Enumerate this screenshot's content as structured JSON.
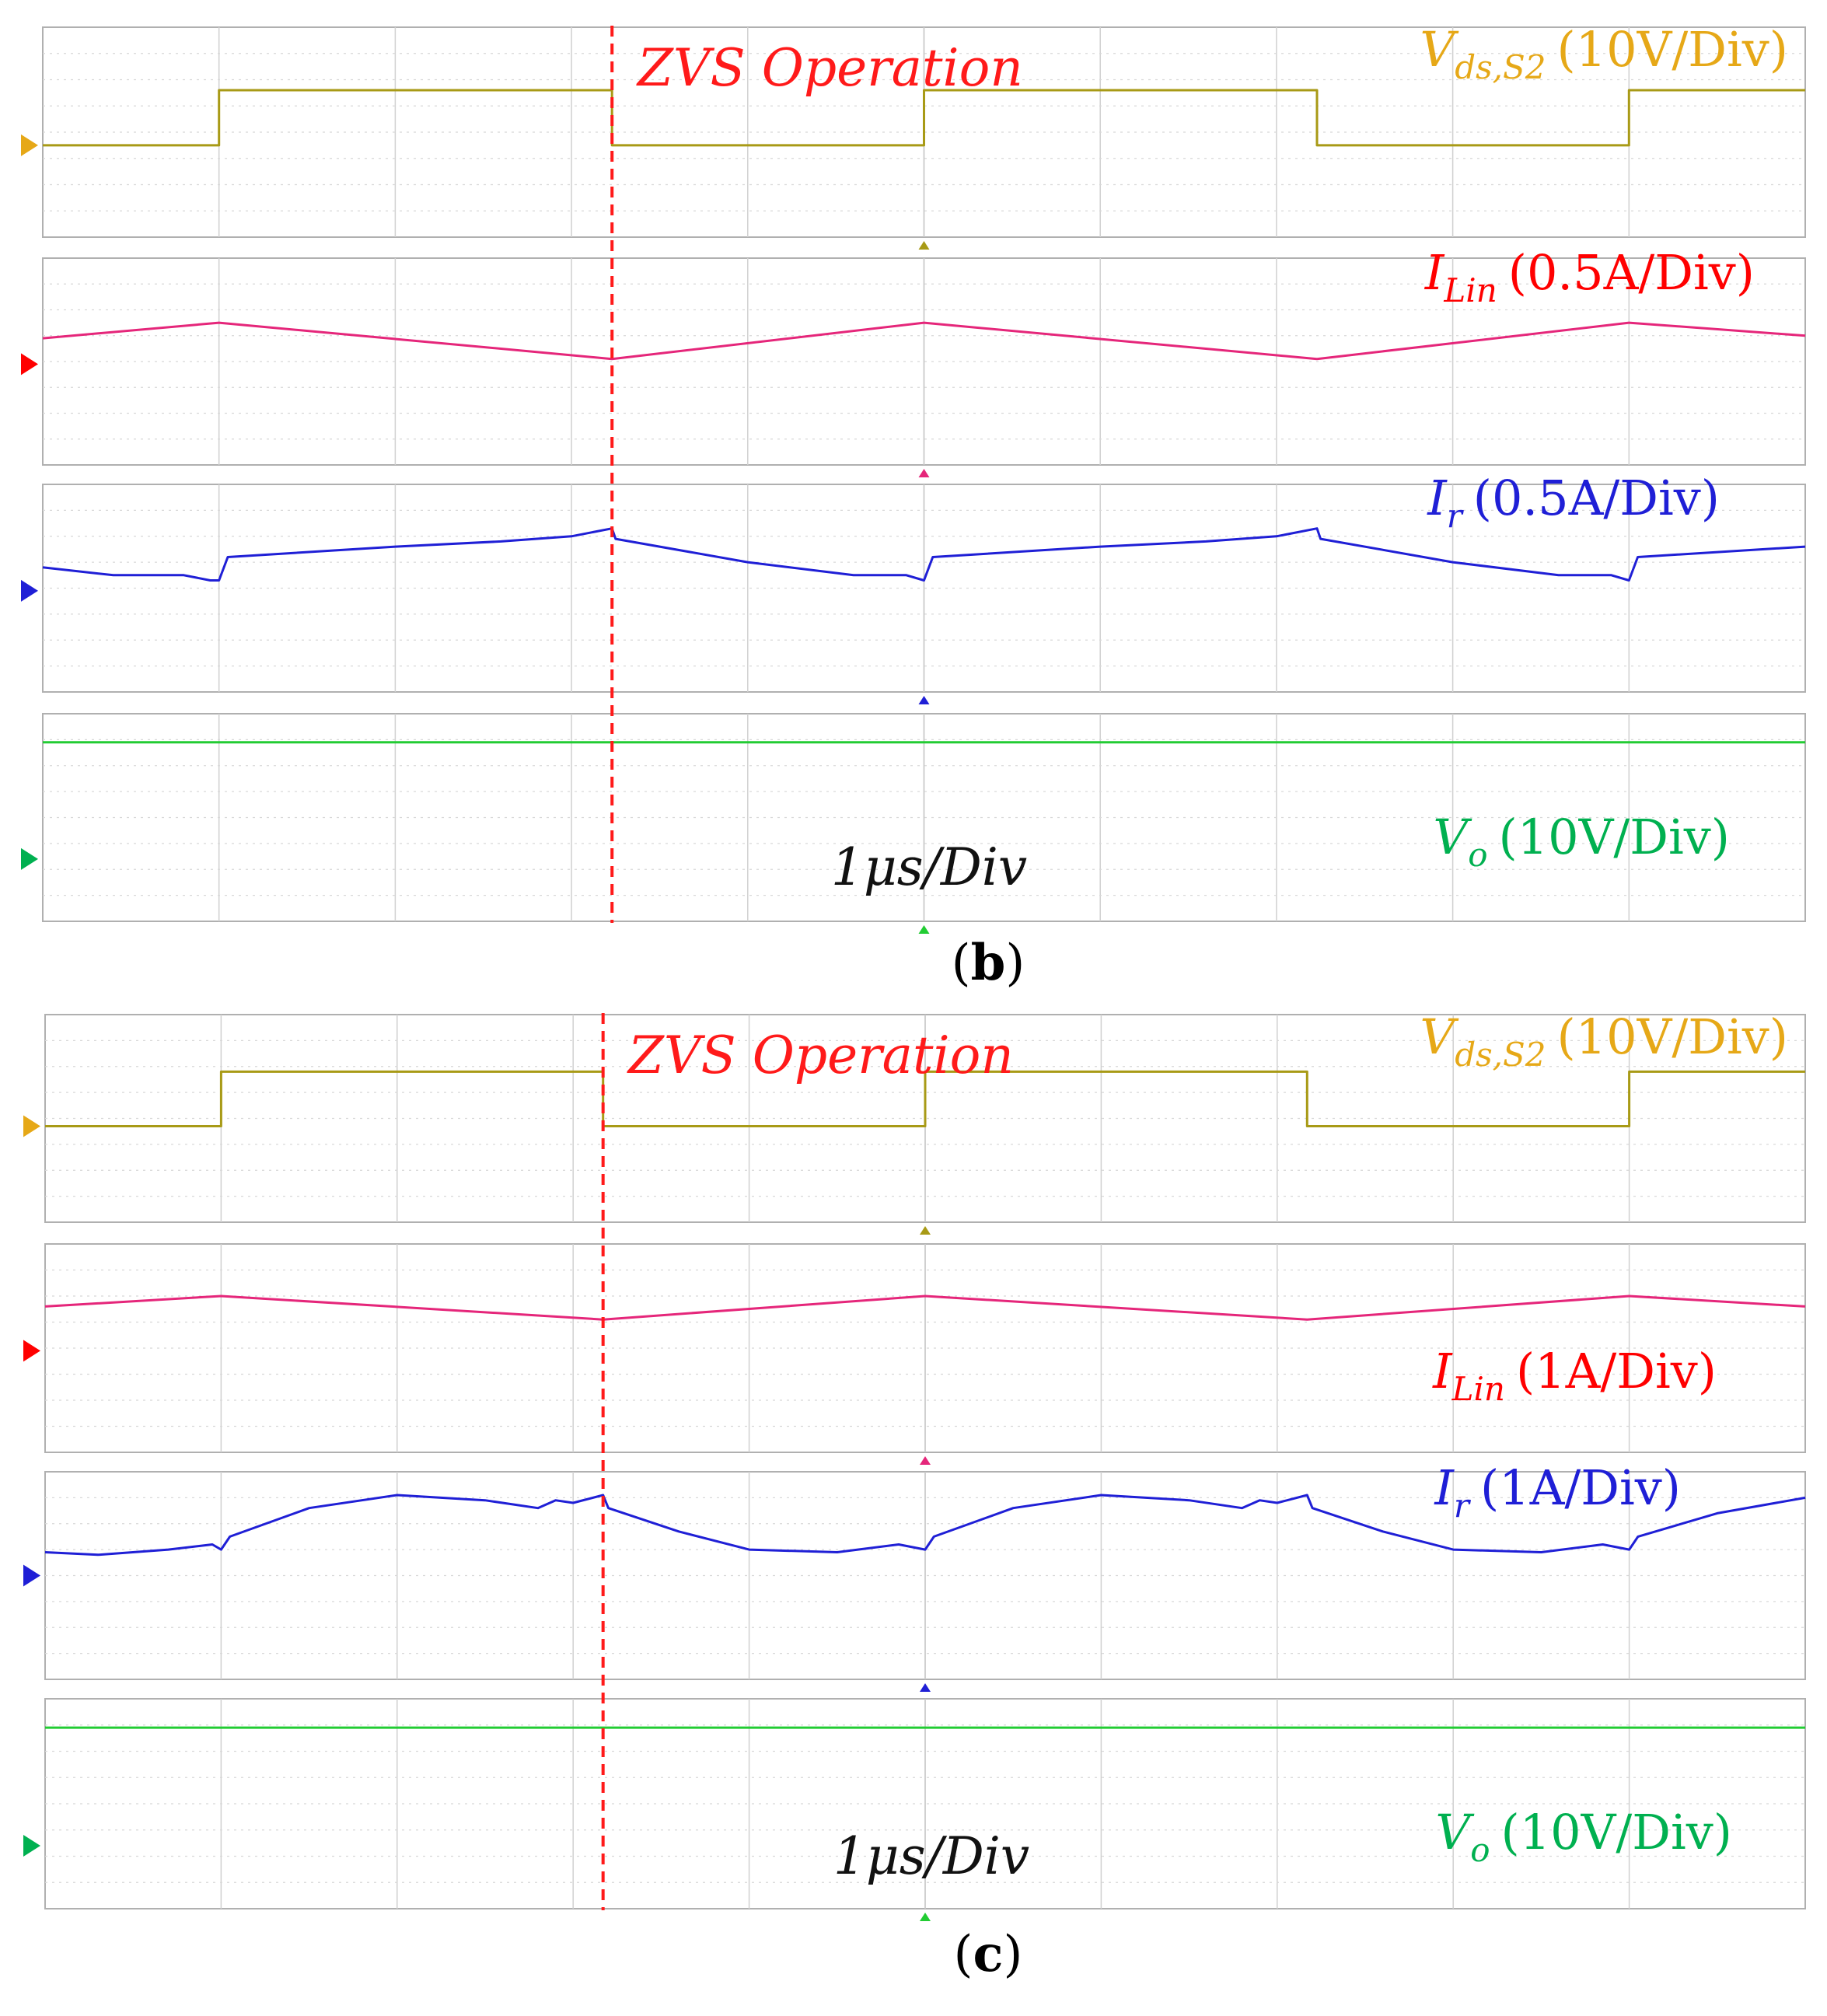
{
  "figure": {
    "panels": [
      {
        "caption_letter": "b",
        "annotation": "ZVS Operation",
        "timebase": "1μs/Div",
        "channels": [
          {
            "key": "vds",
            "symbol": "V",
            "sub": "ds,S2",
            "scale": "(10V/Div)",
            "color": "#e6a817",
            "trace_color": "#a89a16"
          },
          {
            "key": "ilin",
            "symbol": "I",
            "sub": "Lin",
            "scale": "(0.5A/Div)",
            "color": "#ff0000",
            "trace_color": "#e5267a"
          },
          {
            "key": "ir",
            "symbol": "I",
            "sub": "r",
            "scale": "(0.5A/Div)",
            "color": "#1f1fd6",
            "trace_color": "#1f1fd6"
          },
          {
            "key": "vo",
            "symbol": "V",
            "sub": "o",
            "scale": "(10V/Div)",
            "color": "#00b050",
            "trace_color": "#22cc33"
          }
        ]
      },
      {
        "caption_letter": "c",
        "annotation": "ZVS Operation",
        "timebase": "1μs/Div",
        "channels": [
          {
            "key": "vds",
            "symbol": "V",
            "sub": "ds,S2",
            "scale": "(10V/Div)",
            "color": "#e6a817",
            "trace_color": "#a89a16"
          },
          {
            "key": "ilin",
            "symbol": "I",
            "sub": "Lin",
            "scale": "(1A/Div)",
            "color": "#ff0000",
            "trace_color": "#e5267a"
          },
          {
            "key": "ir",
            "symbol": "I",
            "sub": "r",
            "scale": "(1A/Div)",
            "color": "#1f1fd6",
            "trace_color": "#1f1fd6"
          },
          {
            "key": "vo",
            "symbol": "V",
            "sub": "o",
            "scale": "(10V/Div)",
            "color": "#00b050",
            "trace_color": "#22cc33"
          }
        ]
      }
    ]
  },
  "chart_data": [
    {
      "type": "line",
      "title": "",
      "x_unit": "div (1μs/Div)",
      "xlim": [
        0,
        10
      ],
      "grid": true,
      "zvs_marker_x": 3.23,
      "series": [
        {
          "name": "Vds,S2",
          "unit": "div",
          "x": [
            0,
            1.0,
            1.0,
            3.23,
            3.23,
            5.0,
            5.0,
            7.23,
            7.23,
            9.0,
            9.0,
            10.0
          ],
          "values": [
            -0.5,
            -0.5,
            1.6,
            1.6,
            -0.5,
            -0.5,
            1.6,
            1.6,
            -0.5,
            -0.5,
            1.6,
            1.6
          ]
        },
        {
          "name": "ILin",
          "unit": "div",
          "x": [
            0,
            1.0,
            3.23,
            5.0,
            7.23,
            9.0,
            10.0
          ],
          "values": [
            0.9,
            1.5,
            0.1,
            1.5,
            0.1,
            1.5,
            1.0
          ]
        },
        {
          "name": "Ir",
          "unit": "div",
          "x": [
            0,
            0.4,
            0.8,
            0.95,
            1.0,
            1.05,
            2.0,
            2.6,
            3.0,
            3.23,
            3.25,
            4.0,
            4.6,
            4.9,
            5.0,
            5.05,
            6.0,
            6.6,
            7.0,
            7.23,
            7.25,
            8.0,
            8.6,
            8.9,
            9.0,
            9.05,
            10.0
          ],
          "values": [
            0.8,
            0.5,
            0.5,
            0.3,
            0.3,
            1.2,
            1.6,
            1.8,
            2.0,
            2.3,
            1.9,
            1.0,
            0.5,
            0.5,
            0.3,
            1.2,
            1.6,
            1.8,
            2.0,
            2.3,
            1.9,
            1.0,
            0.5,
            0.5,
            0.3,
            1.2,
            1.6
          ]
        },
        {
          "name": "Vo",
          "unit": "div",
          "x": [
            0,
            10
          ],
          "values": [
            2.9,
            2.9
          ]
        }
      ]
    },
    {
      "type": "line",
      "title": "",
      "x_unit": "div (1μs/Div)",
      "xlim": [
        0,
        10
      ],
      "grid": true,
      "zvs_marker_x": 3.17,
      "series": [
        {
          "name": "Vds,S2",
          "unit": "div",
          "x": [
            0,
            1.0,
            1.0,
            3.17,
            3.17,
            5.0,
            5.0,
            7.17,
            7.17,
            9.0,
            9.0,
            10.0
          ],
          "values": [
            -0.3,
            -0.3,
            1.8,
            1.8,
            -0.3,
            -0.3,
            1.8,
            1.8,
            -0.3,
            -0.3,
            1.8,
            1.8
          ]
        },
        {
          "name": "ILin",
          "unit": "div",
          "x": [
            0,
            1.0,
            3.17,
            5.0,
            7.17,
            9.0,
            10.0
          ],
          "values": [
            1.6,
            2.0,
            1.1,
            2.0,
            1.1,
            2.0,
            1.6
          ]
        },
        {
          "name": "Ir",
          "unit": "div",
          "x": [
            0,
            0.3,
            0.7,
            0.95,
            1.0,
            1.05,
            1.5,
            2.0,
            2.5,
            2.8,
            2.9,
            3.0,
            3.17,
            3.2,
            3.6,
            4.0,
            4.5,
            4.85,
            5.0,
            5.05,
            5.5,
            6.0,
            6.5,
            6.8,
            6.9,
            7.0,
            7.17,
            7.2,
            7.6,
            8.0,
            8.5,
            8.85,
            9.0,
            9.05,
            9.5,
            10.0
          ],
          "values": [
            0.9,
            0.8,
            1.0,
            1.2,
            1.0,
            1.5,
            2.6,
            3.1,
            2.9,
            2.6,
            2.9,
            2.8,
            3.1,
            2.6,
            1.7,
            1.0,
            0.9,
            1.2,
            1.0,
            1.5,
            2.6,
            3.1,
            2.9,
            2.6,
            2.9,
            2.8,
            3.1,
            2.6,
            1.7,
            1.0,
            0.9,
            1.2,
            1.0,
            1.5,
            2.4,
            3.0
          ]
        },
        {
          "name": "Vo",
          "unit": "div",
          "x": [
            0,
            10
          ],
          "values": [
            2.9,
            2.9
          ]
        }
      ]
    }
  ]
}
